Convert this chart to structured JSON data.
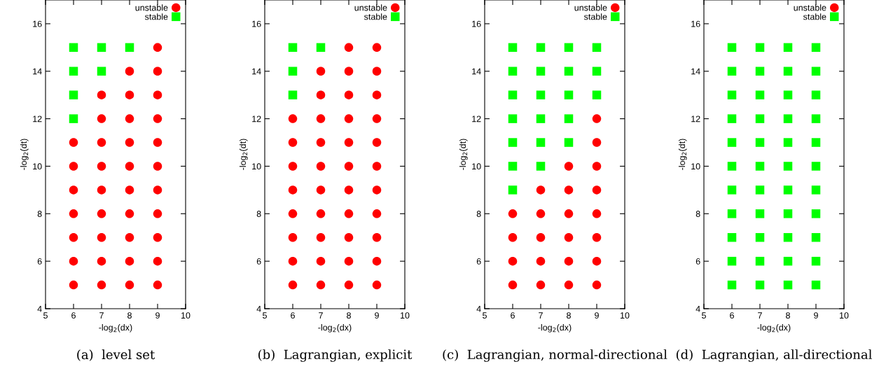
{
  "chart_data": [
    {
      "type": "scatter",
      "xlabel": "-log$_{2}$(dx)",
      "ylabel": "-log$_{2}$(dt)",
      "xlim": [
        5,
        10
      ],
      "ylim": [
        4,
        17
      ],
      "xticks": [
        5,
        6,
        7,
        8,
        9,
        10
      ],
      "yticks": [
        4,
        6,
        8,
        10,
        12,
        14,
        16
      ],
      "legend": "top right",
      "grid": false,
      "annotations": [
        "(a)  level set"
      ],
      "series": [
        {
          "name": "unstable",
          "color": "#ff0000",
          "marker": "circle",
          "x": [
            6,
            6,
            6,
            6,
            6,
            6,
            6,
            7,
            7,
            7,
            7,
            7,
            7,
            7,
            7,
            7,
            8,
            8,
            8,
            8,
            8,
            8,
            8,
            8,
            8,
            8,
            9,
            9,
            9,
            9,
            9,
            9,
            9,
            9,
            9,
            9,
            9
          ],
          "values": [
            5,
            6,
            7,
            8,
            9,
            10,
            11,
            5,
            6,
            7,
            8,
            9,
            10,
            11,
            12,
            13,
            5,
            6,
            7,
            8,
            9,
            10,
            11,
            12,
            13,
            14,
            5,
            6,
            7,
            8,
            9,
            10,
            11,
            12,
            13,
            14,
            15
          ]
        },
        {
          "name": "stable",
          "color": "#00ff00",
          "marker": "square",
          "x": [
            6,
            6,
            6,
            6,
            7,
            7,
            8
          ],
          "values": [
            12,
            13,
            14,
            15,
            14,
            15,
            15
          ]
        }
      ]
    },
    {
      "type": "scatter",
      "xlabel": "-log$_{2}$(dx)",
      "ylabel": "-log$_{2}$(dt)",
      "xlim": [
        5,
        10
      ],
      "ylim": [
        4,
        17
      ],
      "xticks": [
        5,
        6,
        7,
        8,
        9,
        10
      ],
      "yticks": [
        4,
        6,
        8,
        10,
        12,
        14,
        16
      ],
      "legend": "top right",
      "grid": false,
      "annotations": [
        "(b)  Lagrangian, explicit"
      ],
      "series": [
        {
          "name": "unstable",
          "color": "#ff0000",
          "marker": "circle",
          "x": [
            6,
            6,
            6,
            6,
            6,
            6,
            6,
            6,
            7,
            7,
            7,
            7,
            7,
            7,
            7,
            7,
            7,
            7,
            8,
            8,
            8,
            8,
            8,
            8,
            8,
            8,
            8,
            8,
            8,
            9,
            9,
            9,
            9,
            9,
            9,
            9,
            9,
            9,
            9,
            9
          ],
          "values": [
            5,
            6,
            7,
            8,
            9,
            10,
            11,
            12,
            5,
            6,
            7,
            8,
            9,
            10,
            11,
            12,
            13,
            14,
            5,
            6,
            7,
            8,
            9,
            10,
            11,
            12,
            13,
            14,
            15,
            5,
            6,
            7,
            8,
            9,
            10,
            11,
            12,
            13,
            14,
            15
          ]
        },
        {
          "name": "stable",
          "color": "#00ff00",
          "marker": "square",
          "x": [
            6,
            6,
            6,
            7
          ],
          "values": [
            13,
            14,
            15,
            15
          ]
        }
      ]
    },
    {
      "type": "scatter",
      "xlabel": "-log$_{2}$(dx)",
      "ylabel": "-log$_{2}$(dt)",
      "xlim": [
        5,
        10
      ],
      "ylim": [
        4,
        17
      ],
      "xticks": [
        5,
        6,
        7,
        8,
        9,
        10
      ],
      "yticks": [
        4,
        6,
        8,
        10,
        12,
        14,
        16
      ],
      "legend": "top right",
      "grid": false,
      "annotations": [
        "(c)  Lagrangian, normal-directional"
      ],
      "series": [
        {
          "name": "unstable",
          "color": "#ff0000",
          "marker": "circle",
          "x": [
            6,
            6,
            6,
            6,
            7,
            7,
            7,
            7,
            7,
            8,
            8,
            8,
            8,
            8,
            8,
            9,
            9,
            9,
            9,
            9,
            9,
            9,
            9
          ],
          "values": [
            5,
            6,
            7,
            8,
            5,
            6,
            7,
            8,
            9,
            5,
            6,
            7,
            8,
            9,
            10,
            5,
            6,
            7,
            8,
            9,
            10,
            11,
            12
          ]
        },
        {
          "name": "stable",
          "color": "#00ff00",
          "marker": "square",
          "x": [
            6,
            6,
            6,
            6,
            6,
            6,
            6,
            7,
            7,
            7,
            7,
            7,
            7,
            8,
            8,
            8,
            8,
            8,
            9,
            9,
            9
          ],
          "values": [
            9,
            10,
            11,
            12,
            13,
            14,
            15,
            10,
            11,
            12,
            13,
            14,
            15,
            11,
            12,
            13,
            14,
            15,
            13,
            14,
            15
          ]
        }
      ]
    },
    {
      "type": "scatter",
      "xlabel": "-log$_{2}$(dx)",
      "ylabel": "-log$_{2}$(dt)",
      "xlim": [
        5,
        10
      ],
      "ylim": [
        4,
        17
      ],
      "xticks": [
        5,
        6,
        7,
        8,
        9,
        10
      ],
      "yticks": [
        4,
        6,
        8,
        10,
        12,
        14,
        16
      ],
      "legend": "top right",
      "grid": false,
      "annotations": [
        "(d)  Lagrangian, all-directional"
      ],
      "series": [
        {
          "name": "unstable",
          "color": "#ff0000",
          "marker": "circle"
        },
        {
          "name": "stable",
          "color": "#00ff00",
          "marker": "square",
          "x": [
            6,
            6,
            6,
            6,
            6,
            6,
            6,
            6,
            6,
            6,
            6,
            7,
            7,
            7,
            7,
            7,
            7,
            7,
            7,
            7,
            7,
            7,
            8,
            8,
            8,
            8,
            8,
            8,
            8,
            8,
            8,
            8,
            8,
            9,
            9,
            9,
            9,
            9,
            9,
            9,
            9,
            9,
            9,
            9
          ],
          "values": [
            5,
            6,
            7,
            8,
            9,
            10,
            11,
            12,
            13,
            14,
            15,
            5,
            6,
            7,
            8,
            9,
            10,
            11,
            12,
            13,
            14,
            15,
            5,
            6,
            7,
            8,
            9,
            10,
            11,
            12,
            13,
            14,
            15,
            5,
            6,
            7,
            8,
            9,
            10,
            11,
            12,
            13,
            14,
            15
          ]
        }
      ]
    }
  ]
}
